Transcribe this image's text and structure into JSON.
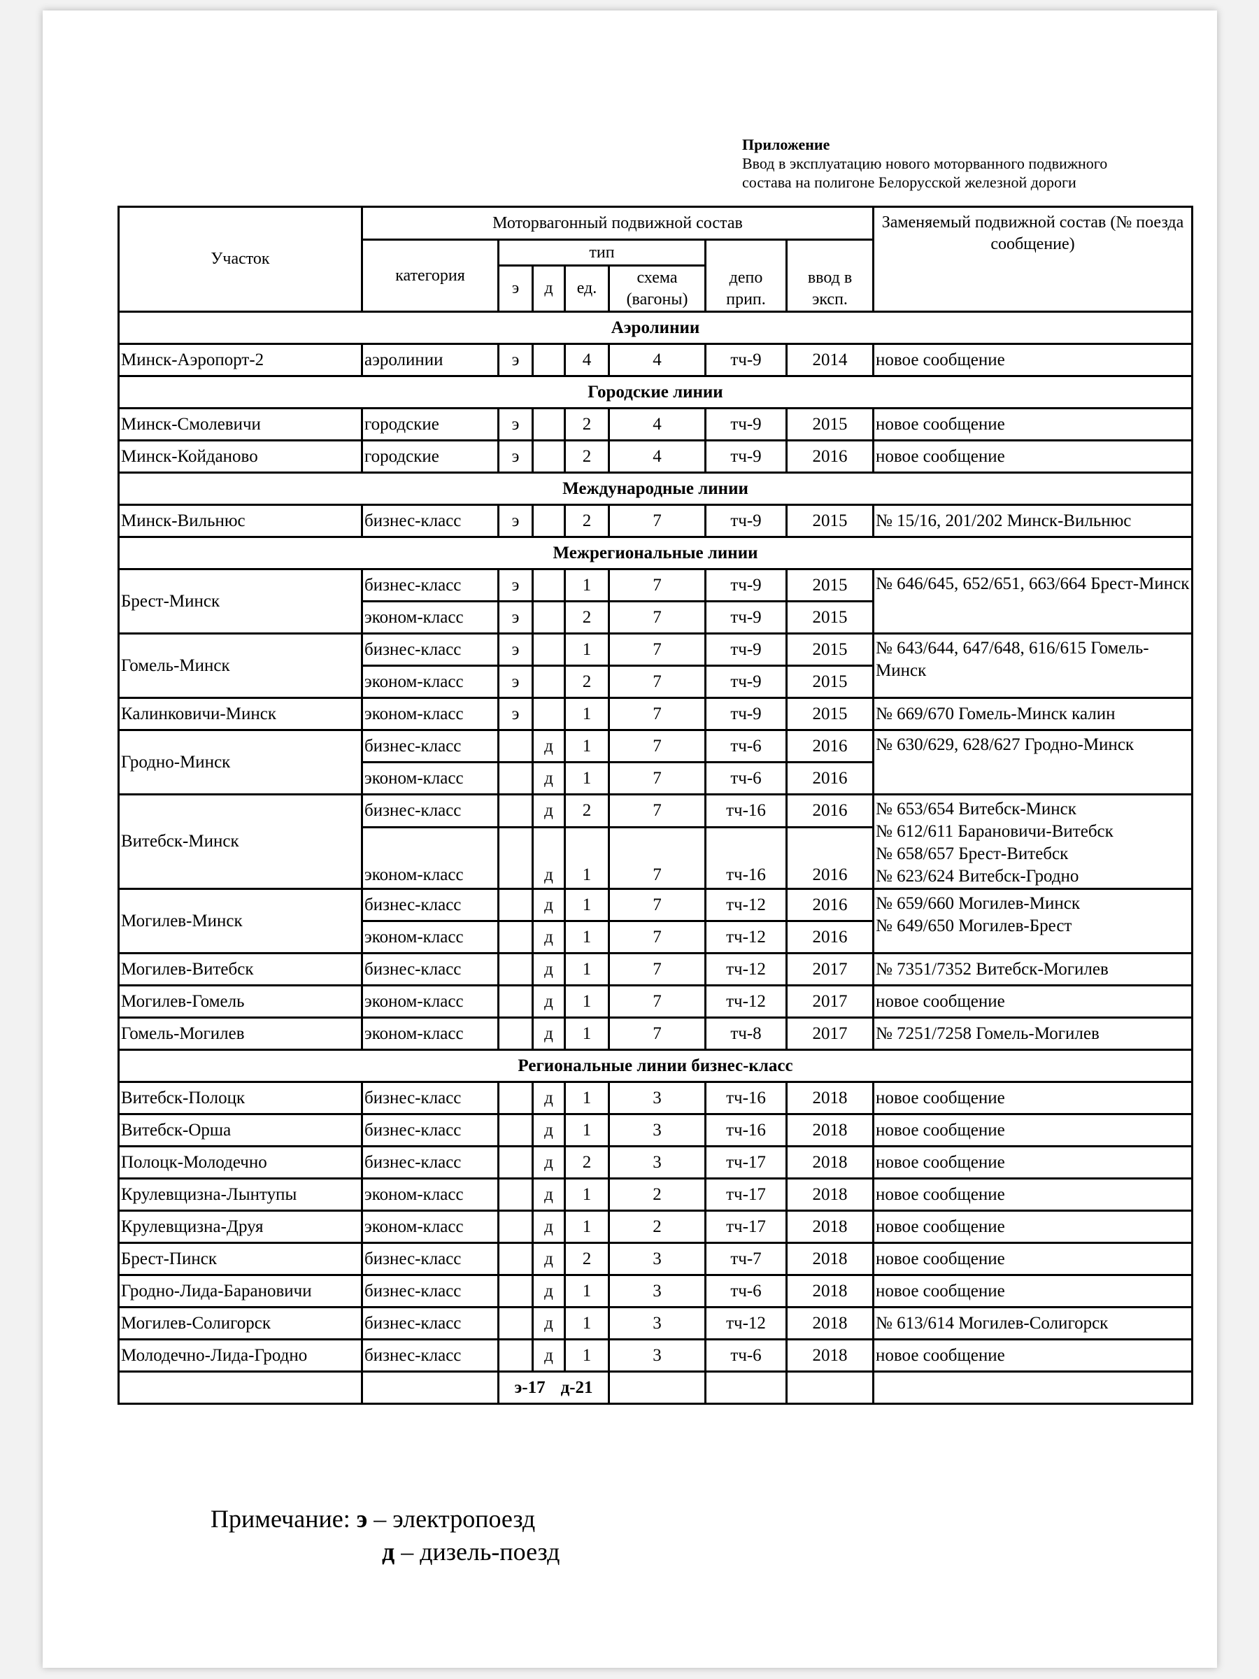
{
  "appendix": {
    "title": "Приложение",
    "line1": "Ввод в эксплуатацию  нового моторванного подвижного",
    "line2": "состава на полигоне Белорусской железной дороги"
  },
  "header": {
    "section": "Участок",
    "mvps": "Моторвагонный подвижной состав",
    "category": "категория",
    "type": "тип",
    "e": "э",
    "d": "д",
    "units": "ед.",
    "scheme": "схема (вагоны)",
    "depot": "депо прип.",
    "year": "ввод в эксп.",
    "replaced": "Заменяемый подвижной состав (№ поезда сообщение)"
  },
  "sections": [
    {
      "title": "Аэролинии",
      "routes": [
        {
          "name": "Минск-Аэропорт-2",
          "replaced": "новое сообщение",
          "rows": [
            {
              "category": "аэролинии",
              "e": "э",
              "d": "",
              "units": "4",
              "scheme": "4",
              "depot": "тч-9",
              "year": "2014"
            }
          ]
        }
      ]
    },
    {
      "title": "Городские линии",
      "routes": [
        {
          "name": "Минск-Смолевичи",
          "replaced": "новое сообщение",
          "rows": [
            {
              "category": "городские",
              "e": "э",
              "d": "",
              "units": "2",
              "scheme": "4",
              "depot": "тч-9",
              "year": "2015"
            }
          ]
        },
        {
          "name": "Минск-Койданово",
          "replaced": "новое сообщение",
          "rows": [
            {
              "category": "городские",
              "e": "э",
              "d": "",
              "units": "2",
              "scheme": "4",
              "depot": "тч-9",
              "year": "2016"
            }
          ]
        }
      ]
    },
    {
      "title": "Международные линии",
      "routes": [
        {
          "name": "Минск-Вильнюс",
          "replaced": "№ 15/16, 201/202 Минск-Вильнюс",
          "rows": [
            {
              "category": "бизнес-класс",
              "e": "э",
              "d": "",
              "units": "2",
              "scheme": "7",
              "depot": "тч-9",
              "year": "2015"
            }
          ]
        }
      ]
    },
    {
      "title": "Межрегиональные линии",
      "routes": [
        {
          "name": "Брест-Минск",
          "replaced": "№ 646/645, 652/651, 663/664 Брест-Минск",
          "rows": [
            {
              "category": "бизнес-класс",
              "e": "э",
              "d": "",
              "units": "1",
              "scheme": "7",
              "depot": "тч-9",
              "year": "2015"
            },
            {
              "category": "эконом-класс",
              "e": "э",
              "d": "",
              "units": "2",
              "scheme": "7",
              "depot": "тч-9",
              "year": "2015"
            }
          ]
        },
        {
          "name": "Гомель-Минск",
          "replaced": "№ 643/644, 647/648, 616/615 Гомель-Минск",
          "rows": [
            {
              "category": "бизнес-класс",
              "e": "э",
              "d": "",
              "units": "1",
              "scheme": "7",
              "depot": "тч-9",
              "year": "2015"
            },
            {
              "category": "эконом-класс",
              "e": "э",
              "d": "",
              "units": "2",
              "scheme": "7",
              "depot": "тч-9",
              "year": "2015"
            }
          ]
        },
        {
          "name": "Калинковичи-Минск",
          "replaced": "№ 669/670 Гомель-Минск калин",
          "rows": [
            {
              "category": "эконом-класс",
              "e": "э",
              "d": "",
              "units": "1",
              "scheme": "7",
              "depot": "тч-9",
              "year": "2015"
            }
          ]
        },
        {
          "name": "Гродно-Минск",
          "replaced": "№ 630/629, 628/627 Гродно-Минск",
          "rows": [
            {
              "category": "бизнес-класс",
              "e": "",
              "d": "д",
              "units": "1",
              "scheme": "7",
              "depot": "тч-6",
              "year": "2016"
            },
            {
              "category": "эконом-класс",
              "e": "",
              "d": "д",
              "units": "1",
              "scheme": "7",
              "depot": "тч-6",
              "year": "2016"
            }
          ]
        },
        {
          "name": "Витебск-Минск",
          "replaced": "№ 653/654 Витебск-Минск\n№ 612/611 Барановичи-Витебск\n№ 658/657 Брест-Витебск\n№ 623/624 Витебск-Гродно",
          "tall": true,
          "rows": [
            {
              "category": "бизнес-класс",
              "e": "",
              "d": "д",
              "units": "2",
              "scheme": "7",
              "depot": "тч-16",
              "year": "2016"
            },
            {
              "category": "эконом-класс",
              "e": "",
              "d": "д",
              "units": "1",
              "scheme": "7",
              "depot": "тч-16",
              "year": "2016"
            }
          ]
        },
        {
          "name": "Могилев-Минск",
          "replaced": "№ 659/660 Могилев-Минск\n№ 649/650 Могилев-Брест",
          "rows": [
            {
              "category": "бизнес-класс",
              "e": "",
              "d": "д",
              "units": "1",
              "scheme": "7",
              "depot": "тч-12",
              "year": "2016"
            },
            {
              "category": "эконом-класс",
              "e": "",
              "d": "д",
              "units": "1",
              "scheme": "7",
              "depot": "тч-12",
              "year": "2016"
            }
          ]
        },
        {
          "name": "Могилев-Витебск",
          "replaced": "№ 7351/7352  Витебск-Могилев",
          "rows": [
            {
              "category": "бизнес-класс",
              "e": "",
              "d": "д",
              "units": "1",
              "scheme": "7",
              "depot": "тч-12",
              "year": "2017"
            }
          ]
        },
        {
          "name": "Могилев-Гомель",
          "replaced": "новое сообщение",
          "rows": [
            {
              "category": "эконом-класс",
              "e": "",
              "d": "д",
              "units": "1",
              "scheme": "7",
              "depot": "тч-12",
              "year": "2017"
            }
          ]
        },
        {
          "name": "Гомель-Могилев",
          "replaced": "№ 7251/7258 Гомель-Могилев",
          "rows": [
            {
              "category": "эконом-класс",
              "e": "",
              "d": "д",
              "units": "1",
              "scheme": "7",
              "depot": "тч-8",
              "year": "2017"
            }
          ]
        }
      ]
    },
    {
      "title": "Региональные линии бизнес-класс",
      "routes": [
        {
          "name": "Витебск-Полоцк",
          "replaced": "новое сообщение",
          "rows": [
            {
              "category": "бизнес-класс",
              "e": "",
              "d": "д",
              "units": "1",
              "scheme": "3",
              "depot": "тч-16",
              "year": "2018"
            }
          ]
        },
        {
          "name": "Витебск-Орша",
          "replaced": "новое сообщение",
          "rows": [
            {
              "category": "бизнес-класс",
              "e": "",
              "d": "д",
              "units": "1",
              "scheme": "3",
              "depot": "тч-16",
              "year": "2018"
            }
          ]
        },
        {
          "name": "Полоцк-Молодечно",
          "replaced": "новое сообщение",
          "rows": [
            {
              "category": "бизнес-класс",
              "e": "",
              "d": "д",
              "units": "2",
              "scheme": "3",
              "depot": "тч-17",
              "year": "2018"
            }
          ]
        },
        {
          "name": "Крулевщизна-Лынтупы",
          "replaced": "новое сообщение",
          "rows": [
            {
              "category": "эконом-класс",
              "e": "",
              "d": "д",
              "units": "1",
              "scheme": "2",
              "depot": "тч-17",
              "year": "2018"
            }
          ]
        },
        {
          "name": "Крулевщизна-Друя",
          "replaced": "новое сообщение",
          "rows": [
            {
              "category": "эконом-класс",
              "e": "",
              "d": "д",
              "units": "1",
              "scheme": "2",
              "depot": "тч-17",
              "year": "2018"
            }
          ]
        },
        {
          "name": "Брест-Пинск",
          "replaced": "новое сообщение",
          "rows": [
            {
              "category": "бизнес-класс",
              "e": "",
              "d": "д",
              "units": "2",
              "scheme": "3",
              "depot": "тч-7",
              "year": "2018"
            }
          ]
        },
        {
          "name": "Гродно-Лида-Барановичи",
          "replaced": "новое сообщение",
          "rows": [
            {
              "category": "бизнес-класс",
              "e": "",
              "d": "д",
              "units": "1",
              "scheme": "3",
              "depot": "тч-6",
              "year": "2018"
            }
          ]
        },
        {
          "name": "Могилев-Солигорск",
          "replaced": "№ 613/614 Могилев-Солигорск",
          "rows": [
            {
              "category": "бизнес-класс",
              "e": "",
              "d": "д",
              "units": "1",
              "scheme": "3",
              "depot": "тч-12",
              "year": "2018"
            }
          ]
        },
        {
          "name": "Молодечно-Лида-Гродно",
          "replaced": "новое сообщение",
          "rows": [
            {
              "category": "бизнес-класс",
              "e": "",
              "d": "д",
              "units": "1",
              "scheme": "3",
              "depot": "тч-6",
              "year": "2018"
            }
          ]
        }
      ]
    }
  ],
  "total": {
    "e": "э-17",
    "d": "д-21"
  },
  "note": {
    "label": "Примечание:",
    "e_letter": "э",
    "e_text": "– электропоезд",
    "d_letter": "д",
    "d_text": "– дизель-поезд"
  }
}
